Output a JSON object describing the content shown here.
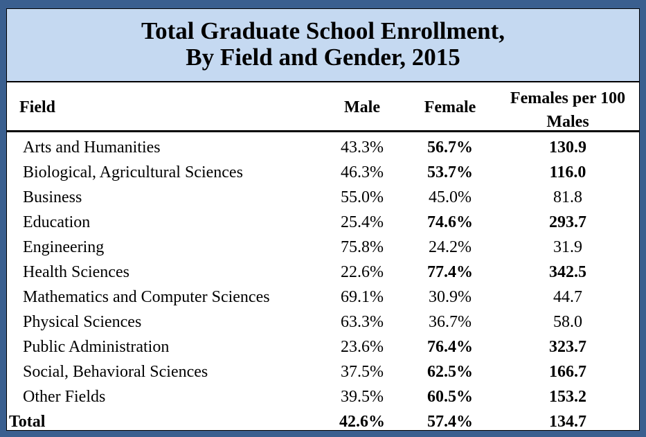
{
  "chart_data": {
    "type": "table",
    "title_line1": "Total Graduate School Enrollment,",
    "title_line2": "By Field and Gender, 2015",
    "columns": {
      "field": "Field",
      "male": "Male",
      "female": "Female",
      "ratio_line1": "Females per 100",
      "ratio_line2": "Males"
    },
    "rows": [
      {
        "field": "Arts and Humanities",
        "male": "43.3%",
        "female": "56.7%",
        "ratio": "130.9",
        "female_majority": true
      },
      {
        "field": "Biological, Agricultural Sciences",
        "male": "46.3%",
        "female": "53.7%",
        "ratio": "116.0",
        "female_majority": true
      },
      {
        "field": "Business",
        "male": "55.0%",
        "female": "45.0%",
        "ratio": "81.8",
        "female_majority": false
      },
      {
        "field": "Education",
        "male": "25.4%",
        "female": "74.6%",
        "ratio": "293.7",
        "female_majority": true
      },
      {
        "field": "Engineering",
        "male": "75.8%",
        "female": "24.2%",
        "ratio": "31.9",
        "female_majority": false
      },
      {
        "field": "Health Sciences",
        "male": "22.6%",
        "female": "77.4%",
        "ratio": "342.5",
        "female_majority": true
      },
      {
        "field": "Mathematics and Computer Sciences",
        "male": "69.1%",
        "female": "30.9%",
        "ratio": "44.7",
        "female_majority": false
      },
      {
        "field": "Physical Sciences",
        "male": "63.3%",
        "female": "36.7%",
        "ratio": "58.0",
        "female_majority": false
      },
      {
        "field": "Public Administration",
        "male": "23.6%",
        "female": "76.4%",
        "ratio": "323.7",
        "female_majority": true
      },
      {
        "field": "Social, Behavioral Sciences",
        "male": "37.5%",
        "female": "62.5%",
        "ratio": "166.7",
        "female_majority": true
      },
      {
        "field": "Other Fields",
        "male": "39.5%",
        "female": "60.5%",
        "ratio": "153.2",
        "female_majority": true
      }
    ],
    "total": {
      "field": "Total",
      "male": "42.6%",
      "female": "57.4%",
      "ratio": "134.7"
    }
  },
  "colors": {
    "page_background": "#3a5f8f",
    "title_band": "#c5d9f1",
    "table_background": "#ffffff",
    "text": "#000000"
  }
}
